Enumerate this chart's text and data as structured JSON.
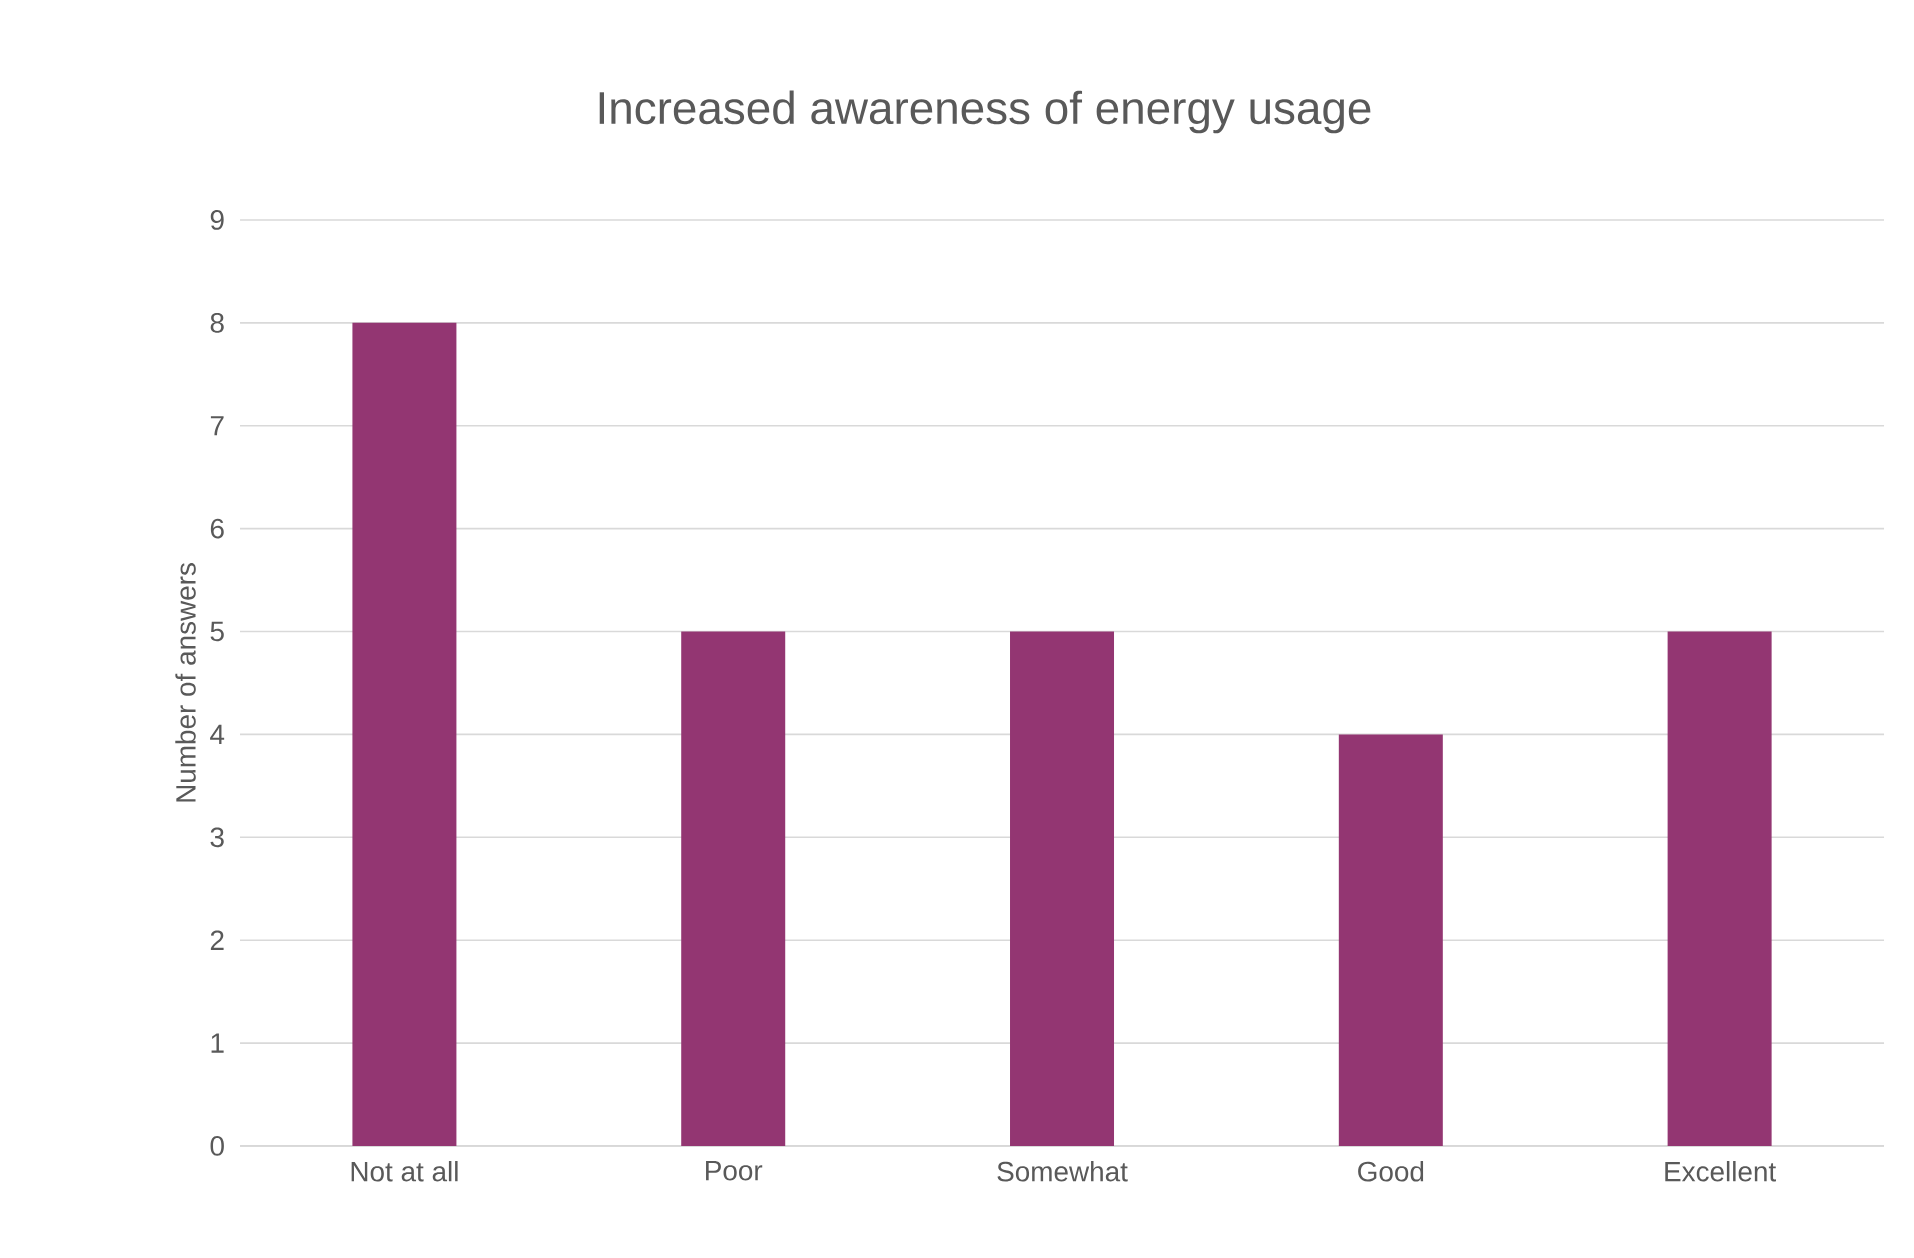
{
  "chart_data": {
    "type": "bar",
    "title": "Increased awareness of energy usage",
    "ylabel": "Number of answers",
    "categories": [
      "Not at all",
      "Poor",
      "Somewhat",
      "Good",
      "Excellent"
    ],
    "values": [
      8,
      5,
      5,
      4,
      5
    ],
    "color": "#933672",
    "ylim": [
      0,
      9
    ],
    "yticks": [
      0,
      1,
      2,
      3,
      4,
      5,
      6,
      7,
      8,
      9
    ],
    "grid": "y"
  }
}
